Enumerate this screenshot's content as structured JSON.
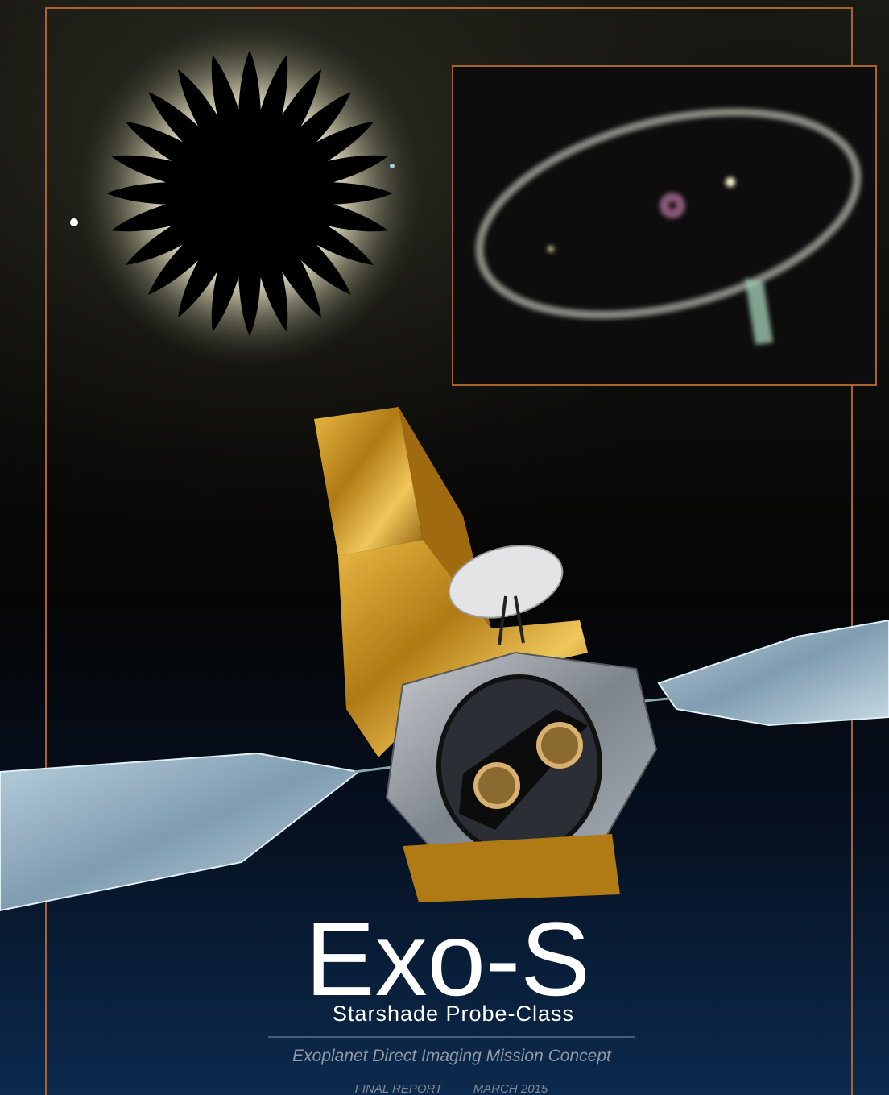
{
  "cover": {
    "title": "Exo-S",
    "subtitle": "Starshade Probe-Class",
    "tagline": "Exoplanet Direct Imaging Mission Concept",
    "report_label": "FINAL REPORT",
    "date": "MARCH 2015"
  }
}
